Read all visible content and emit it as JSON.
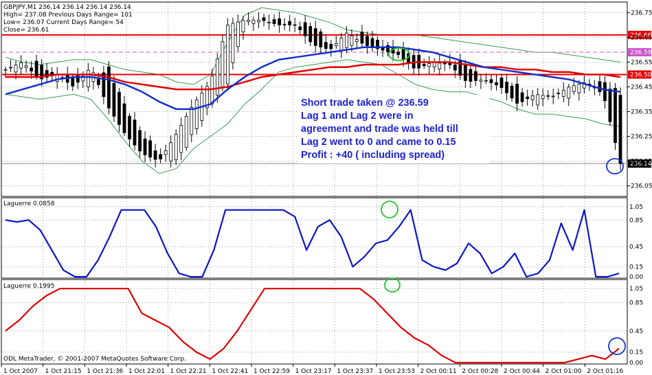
{
  "chart_data": {
    "type": "candlestick",
    "symbol_header": "GBPJPY,M1  236.14 236.14 236.14 236.14",
    "info_lines": [
      "High= 237.08    Previous Days Range= 101",
      "Low= 236.07    Current Days Range= 54",
      "Close= 236.61"
    ],
    "copyright": "ODL MetaTrader, © 2001-2007 MetaQuotes Software Corp.",
    "price_ticks": [
      "236.75",
      "236.65",
      "236.55",
      "236.45",
      "236.35",
      "236.25",
      "236.15",
      "236.05"
    ],
    "price_ylim": [
      236.01,
      236.79
    ],
    "x_labels": [
      "1 Oct 2007",
      "1 Oct 21:15",
      "1 Oct 21:36",
      "1 Oct 22:01",
      "1 Oct 22:21",
      "1 Oct 22:41",
      "1 Oct 22:59",
      "1 Oct 23:17",
      "1 Oct 23:37",
      "1 Oct 23:53",
      "2 Oct 00:11",
      "2 Oct 00:28",
      "2 Oct 00:44",
      "2 Oct 01:00",
      "2 Oct 01:16"
    ],
    "horizontal_levels": [
      {
        "value": 236.66,
        "label": "236.66",
        "color": "#e60000",
        "style": "solid"
      },
      {
        "value": 236.59,
        "label": "236.59",
        "color": "#cc55cc",
        "style": "dashed"
      },
      {
        "value": 236.5,
        "label": "236.50",
        "color": "#e60000",
        "style": "solid"
      },
      {
        "value": 236.14,
        "label": "236.14",
        "color": "#000000",
        "style": "current"
      }
    ],
    "annotation": [
      "Short trade taken @ 236.59",
      "Lag 1 and Lag 2 were in",
      "agreement and trade was held till",
      "Lag 2 went to 0 and came to 0.15",
      "Profit : +40 ( including spread)"
    ],
    "ma_blue": [
      236.42,
      236.44,
      236.46,
      236.48,
      236.49,
      236.49,
      236.48,
      236.46,
      236.43,
      236.39,
      236.36,
      236.36,
      236.38,
      236.44,
      236.49,
      236.53,
      236.56,
      236.57,
      236.58,
      236.59,
      236.6,
      236.61,
      236.61,
      236.61,
      236.6,
      236.59,
      236.57,
      236.55,
      236.53,
      236.52,
      236.51,
      236.5,
      236.49,
      236.48,
      236.46,
      236.44,
      236.43
    ],
    "ma_red": [
      236.49,
      236.49,
      236.49,
      236.5,
      236.5,
      236.5,
      236.49,
      236.47,
      236.46,
      236.45,
      236.44,
      236.44,
      236.44,
      236.45,
      236.47,
      236.49,
      236.5,
      236.51,
      236.52,
      236.53,
      236.53,
      236.54,
      236.54,
      236.54,
      236.55,
      236.55,
      236.55,
      236.54,
      236.53,
      236.53,
      236.52,
      236.52,
      236.51,
      236.51,
      236.5,
      236.5,
      236.49
    ],
    "bb_upper": [
      236.57,
      236.55,
      236.54,
      236.55,
      236.56,
      236.56,
      236.54,
      236.52,
      236.51,
      236.5,
      236.47,
      236.46,
      236.5,
      236.63,
      236.74,
      236.77,
      236.76,
      236.75,
      236.73,
      236.71,
      236.68,
      236.67,
      236.66,
      236.66,
      236.66,
      236.65,
      236.64,
      236.63,
      236.62,
      236.61,
      236.6,
      236.59,
      236.59,
      236.58,
      236.57,
      236.56,
      236.55
    ],
    "bb_lower": [
      236.42,
      236.41,
      236.4,
      236.41,
      236.42,
      236.4,
      236.32,
      236.23,
      236.15,
      236.1,
      236.12,
      236.2,
      236.25,
      236.3,
      236.38,
      236.44,
      236.51,
      236.53,
      236.54,
      236.55,
      236.56,
      236.55,
      236.54,
      236.5,
      236.46,
      236.44,
      236.43,
      236.43,
      236.41,
      236.39,
      236.36,
      236.34,
      236.34,
      236.33,
      236.32,
      236.3,
      236.29
    ],
    "close": [
      236.52,
      236.55,
      236.48,
      236.5,
      236.45,
      236.53,
      236.37,
      236.26,
      236.18,
      236.15,
      236.26,
      236.38,
      236.47,
      236.7,
      236.72,
      236.72,
      236.7,
      236.7,
      236.62,
      236.6,
      236.67,
      236.62,
      236.6,
      236.58,
      236.52,
      236.55,
      236.54,
      236.47,
      236.48,
      236.45,
      236.38,
      236.42,
      236.41,
      236.45,
      236.47,
      236.42,
      236.14
    ],
    "series": [
      {
        "name": "Laguerre 0.0858",
        "color": "#0a14c8",
        "ylim": [
          0,
          1.12
        ],
        "ticks": [
          "1.05",
          "0.85",
          "0.45",
          "0.15",
          "0.00"
        ],
        "values": [
          0.85,
          0.82,
          0.85,
          0.7,
          0.4,
          0.1,
          0.0,
          0.0,
          0.25,
          0.6,
          1.0,
          1.0,
          1.0,
          0.75,
          0.35,
          0.05,
          0.0,
          0.0,
          0.4,
          1.0,
          1.0,
          1.0,
          1.0,
          1.0,
          1.0,
          0.9,
          0.4,
          0.75,
          0.85,
          0.6,
          0.15,
          0.3,
          0.5,
          0.55,
          0.75,
          1.0,
          0.25,
          0.15,
          0.1,
          0.2,
          0.5,
          0.35,
          0.05,
          0.15,
          0.35,
          0.0,
          0.05,
          0.25,
          0.8,
          0.4,
          1.0,
          0.0,
          0.0,
          0.05
        ]
      },
      {
        "name": "Laguerre 0.1995",
        "color": "#e00000",
        "ylim": [
          0,
          1.12
        ],
        "ticks": [
          "1.05",
          "0.85",
          "0.45",
          "0.15",
          "0.00"
        ],
        "values": [
          0.45,
          0.6,
          0.8,
          0.95,
          1.05,
          1.05,
          1.05,
          1.05,
          1.05,
          1.05,
          0.7,
          0.6,
          0.5,
          0.3,
          0.15,
          0.05,
          0.2,
          0.45,
          0.75,
          1.05,
          1.05,
          1.05,
          1.05,
          1.05,
          1.05,
          1.05,
          1.05,
          0.9,
          0.7,
          0.5,
          0.35,
          0.25,
          0.1,
          0.0,
          0.0,
          0.0,
          0.0,
          0.0,
          0.0,
          0.0,
          0.0,
          0.0,
          0.05,
          0.1,
          0.05,
          0.2
        ]
      }
    ]
  }
}
